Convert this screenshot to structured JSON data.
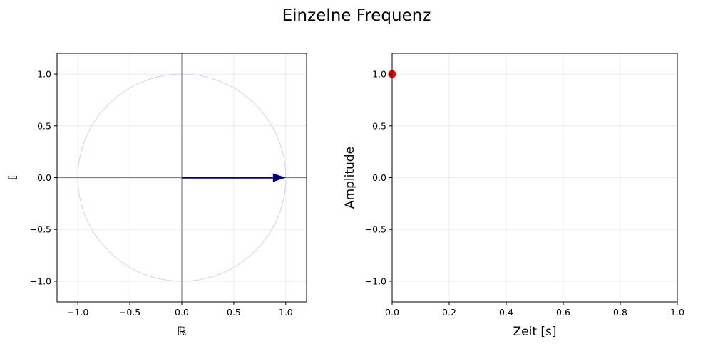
{
  "figure": {
    "title": "Einzelne Frequenz"
  },
  "chart_data": [
    {
      "type": "phasor",
      "title": "",
      "xlabel": "ℝ",
      "ylabel": "𝕀",
      "xlim": [
        -1.2,
        1.2
      ],
      "ylim": [
        -1.2,
        1.2
      ],
      "xticks": [
        -1.0,
        -0.5,
        0.0,
        0.5,
        1.0
      ],
      "yticks": [
        -1.0,
        -0.5,
        0.0,
        0.5,
        1.0
      ],
      "xtick_labels": [
        "−1.0",
        "−0.5",
        "0.0",
        "0.5",
        "1.0"
      ],
      "ytick_labels": [
        "−1.0",
        "−0.5",
        "0.0",
        "0.5",
        "1.0"
      ],
      "grid": true,
      "unit_circle": {
        "radius": 1.0,
        "color": "#c8d6f5"
      },
      "phasor": {
        "x": [
          0,
          1.0
        ],
        "y": [
          0,
          0
        ],
        "color": "#00007f"
      },
      "axes_lines_color": "#808080"
    },
    {
      "type": "scatter",
      "title": "",
      "xlabel": "Zeit [s]",
      "ylabel": "Amplitude",
      "xlim": [
        0.0,
        1.0
      ],
      "ylim": [
        -1.2,
        1.2
      ],
      "xticks": [
        0.0,
        0.2,
        0.4,
        0.6,
        0.8,
        1.0
      ],
      "yticks": [
        -1.0,
        -0.5,
        0.0,
        0.5,
        1.0
      ],
      "xtick_labels": [
        "0.0",
        "0.2",
        "0.4",
        "0.6",
        "0.8",
        "1.0"
      ],
      "ytick_labels": [
        "−1.0",
        "−0.5",
        "0.0",
        "0.5",
        "1.0"
      ],
      "grid": true,
      "series": [
        {
          "x": [
            0.0
          ],
          "y": [
            1.0
          ],
          "color": "#ff0000"
        }
      ]
    }
  ]
}
